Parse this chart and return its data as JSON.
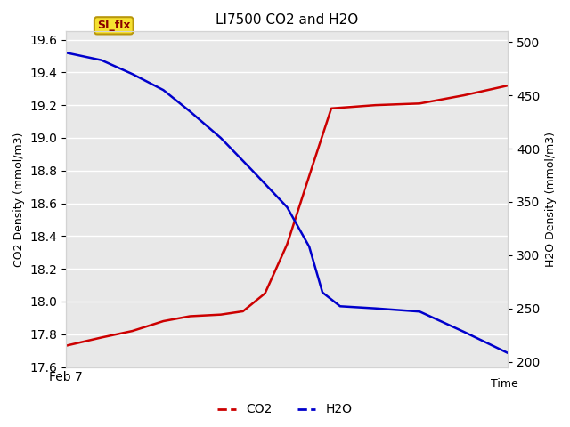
{
  "title": "LI7500 CO2 and H2O",
  "ylabel_left": "CO2 Density (mmol/m3)",
  "ylabel_right": "H2O Density (mmol/m3)",
  "xlim": [
    0,
    10
  ],
  "ylim_left": [
    17.6,
    19.65
  ],
  "ylim_right": [
    195,
    510
  ],
  "co2_x": [
    0,
    0.8,
    1.5,
    2.2,
    2.8,
    3.5,
    4.0,
    4.5,
    5.0,
    5.3,
    5.6,
    6.0,
    7.0,
    8.0,
    9.0,
    10.0
  ],
  "co2_y": [
    17.73,
    17.78,
    17.82,
    17.88,
    17.91,
    17.92,
    17.94,
    18.05,
    18.35,
    18.6,
    18.85,
    19.18,
    19.2,
    19.21,
    19.26,
    19.32
  ],
  "h2o_x": [
    0,
    0.8,
    1.5,
    2.2,
    2.8,
    3.5,
    4.2,
    5.0,
    5.5,
    5.8,
    6.2,
    7.0,
    8.0,
    9.0,
    10.0
  ],
  "h2o_y": [
    490,
    483,
    470,
    455,
    435,
    410,
    380,
    345,
    308,
    265,
    252,
    250,
    247,
    228,
    208
  ],
  "co2_color": "#cc0000",
  "h2o_color": "#0000cc",
  "plot_bg_color": "#e8e8e8",
  "fig_bg_color": "#ffffff",
  "annotation_text": "SI_flx",
  "yticks_left": [
    17.6,
    17.8,
    18.0,
    18.2,
    18.4,
    18.6,
    18.8,
    19.0,
    19.2,
    19.4,
    19.6
  ],
  "yticks_right": [
    200,
    250,
    300,
    350,
    400,
    450,
    500
  ],
  "legend_co2": "CO2",
  "legend_h2o": "H2O",
  "time_label": "Time",
  "feb7_label": "Feb 7"
}
